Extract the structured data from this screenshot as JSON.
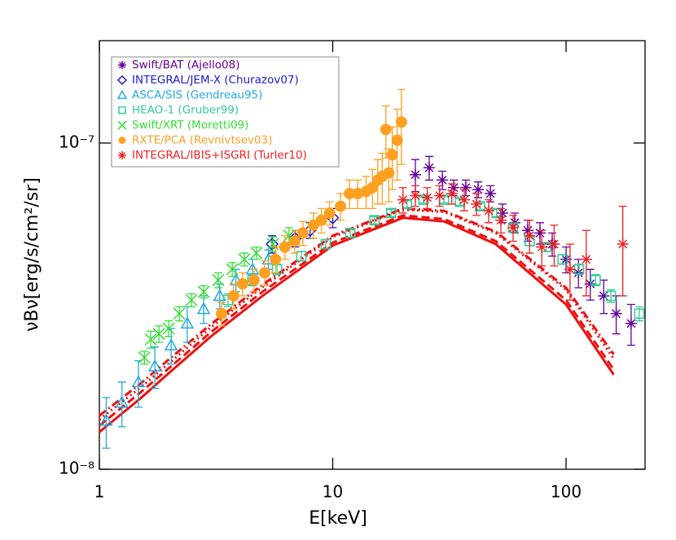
{
  "chart_data": {
    "type": "scatter",
    "xlabel": "E[keV]",
    "ylabel": "νBν[erg/s/cm²/sr]",
    "xscale": "log",
    "yscale": "log",
    "xlim": [
      1,
      218
    ],
    "ylim": [
      1e-08,
      2.06e-07
    ],
    "xticks": [
      1,
      10,
      100
    ],
    "yticks": [
      {
        "value": 1e-08,
        "label": "10⁻⁸"
      },
      {
        "value": 1e-07,
        "label": "10⁻⁷"
      }
    ],
    "legend": "upper left",
    "curves": [
      {
        "color": "#ee1111",
        "style": "solid",
        "x": [
          1,
          1.5,
          2,
          3,
          5,
          10,
          20,
          30,
          50,
          100,
          160
        ],
        "values": [
          1.3e-08,
          1.65e-08,
          1.98e-08,
          2.55e-08,
          3.4e-08,
          4.85e-08,
          5.9e-08,
          5.75e-08,
          4.9e-08,
          3.2e-08,
          1.95e-08
        ]
      },
      {
        "color": "#ee1111",
        "style": "dashed",
        "x": [
          1,
          1.5,
          2,
          3,
          5,
          10,
          20,
          30,
          50,
          100,
          160
        ],
        "values": [
          1.36e-08,
          1.72e-08,
          2.05e-08,
          2.63e-08,
          3.5e-08,
          4.95e-08,
          6e-08,
          5.85e-08,
          5e-08,
          3.3e-08,
          2.02e-08
        ]
      },
      {
        "color": "#ee1111",
        "style": "dotted",
        "x": [
          1,
          1.5,
          2,
          3,
          5,
          10,
          20,
          30,
          50,
          100,
          160
        ],
        "values": [
          1.42e-08,
          1.78e-08,
          2.12e-08,
          2.72e-08,
          3.62e-08,
          5.15e-08,
          6.25e-08,
          6.15e-08,
          5.3e-08,
          3.55e-08,
          2.18e-08
        ]
      },
      {
        "color": "#ee1111",
        "style": "dashdot",
        "x": [
          1,
          1.5,
          2,
          3,
          5,
          10,
          20,
          30,
          50,
          100,
          160
        ],
        "values": [
          1.46e-08,
          1.83e-08,
          2.18e-08,
          2.78e-08,
          3.68e-08,
          5.2e-08,
          6.3e-08,
          6.2e-08,
          5.35e-08,
          3.6e-08,
          2.25e-08
        ]
      }
    ],
    "series": [
      {
        "name": "Swift/BAT (Ajello08)",
        "color": "#660099",
        "marker": "asterisk",
        "x": [
          22.6,
          25.9,
          29.5,
          33,
          37.2,
          42,
          47.4,
          53.4,
          60.3,
          68.5,
          77.3,
          87.2,
          100,
          113,
          127,
          145,
          164,
          190
        ],
        "values": [
          8e-08,
          8.4e-08,
          7.7e-08,
          7.3e-08,
          7.3e-08,
          7.2e-08,
          7e-08,
          6.1e-08,
          5.7e-08,
          5.4e-08,
          5.3e-08,
          4.9e-08,
          4.4e-08,
          4e-08,
          3.7e-08,
          3.4e-08,
          3e-08,
          2.8e-08
        ],
        "errors": [
          9e-09,
          7e-09,
          5e-09,
          4e-09,
          4e-09,
          4e-09,
          4e-09,
          4e-09,
          4e-09,
          4e-09,
          4e-09,
          4e-09,
          4e-09,
          4e-09,
          4e-09,
          4e-09,
          4e-09,
          4e-09
        ]
      },
      {
        "name": "INTEGRAL/JEM-X (Churazov07)",
        "color": "#1a1acc",
        "marker": "diamond",
        "x": [
          5.5,
          6.9,
          8.0,
          10
        ],
        "values": [
          4.9e-08,
          5.1e-08,
          5.4e-08,
          5.9e-08
        ],
        "errors": [
          3e-09,
          3e-09,
          3e-09,
          4e-09
        ]
      },
      {
        "name": "ASCA/SIS (Gendreau95)",
        "color": "#22aadd",
        "marker": "triangle",
        "x": [
          1.07,
          1.25,
          1.47,
          1.73,
          2.03,
          2.38,
          2.8,
          3.28,
          3.85,
          4.53,
          5.3
        ],
        "values": [
          1.41e-08,
          1.6e-08,
          1.85e-08,
          2.07e-08,
          2.4e-08,
          2.8e-08,
          3.1e-08,
          3.4e-08,
          3.8e-08,
          4.1e-08,
          4.4e-08
        ],
        "errors": [
          2.5e-09,
          2.5e-09,
          3e-09,
          3e-09,
          3e-09,
          3.5e-09,
          3e-09,
          3e-09,
          3e-09,
          3e-09,
          3e-09
        ]
      },
      {
        "name": "HEAO-1 (Gruber99)",
        "color": "#33cc99",
        "marker": "square",
        "x": [
          3.56,
          4.53,
          5.77,
          7.34,
          9.34,
          11.9,
          15.1,
          17.8,
          20.8,
          24.5,
          30.0,
          35.1,
          42.8,
          50.4,
          59.3,
          69.8,
          82.1,
          96.7,
          113.7,
          133.8,
          155.6,
          206
        ],
        "values": [
          3.3e-08,
          3.8e-08,
          4.1e-08,
          4.5e-08,
          4.9e-08,
          5.3e-08,
          5.8e-08,
          6.1e-08,
          6.5e-08,
          6.7e-08,
          6.7e-08,
          6.6e-08,
          6.4e-08,
          6.1e-08,
          5.5e-08,
          5e-08,
          4.8e-08,
          4.4e-08,
          4.1e-08,
          3.8e-08,
          3.4e-08,
          3e-08
        ],
        "errors": [
          1.5e-09,
          1.5e-09,
          1.5e-09,
          1.5e-09,
          1.5e-09,
          1.5e-09,
          1.5e-09,
          1.5e-09,
          1.5e-09,
          1.5e-09,
          1.5e-09,
          1.5e-09,
          1.5e-09,
          1.5e-09,
          1.5e-09,
          1.5e-09,
          1.5e-09,
          1.5e-09,
          1.5e-09,
          1.5e-09,
          1.5e-09,
          1.5e-09
        ]
      },
      {
        "name": "Swift/XRT (Moretti09)",
        "color": "#33dd33",
        "marker": "x",
        "x": [
          1.56,
          1.66,
          1.8,
          1.98,
          2.2,
          2.48,
          2.8,
          3.23,
          3.71,
          4.18,
          4.71,
          5.54,
          6.5
        ],
        "values": [
          2.2e-08,
          2.5e-08,
          2.6e-08,
          2.7e-08,
          3e-08,
          3.3e-08,
          3.5e-08,
          3.8e-08,
          4.1e-08,
          4.4e-08,
          4.6e-08,
          4.9e-08,
          5.2e-08
        ],
        "errors": [
          1e-09,
          1.5e-09,
          1.5e-09,
          1.5e-09,
          1.5e-09,
          1.5e-09,
          1.5e-09,
          2e-09,
          2e-09,
          2e-09,
          2e-09,
          2.5e-09,
          3e-09
        ]
      },
      {
        "name": "RXTE/PCA (Revnivtsev03)",
        "color": "#ffa020",
        "marker": "circle",
        "x": [
          3.34,
          3.76,
          4.11,
          4.6,
          5.11,
          5.68,
          6.24,
          6.87,
          7.45,
          8.27,
          8.95,
          9.7,
          10.8,
          11.8,
          12.8,
          13.9,
          14.8,
          15.6,
          16.3,
          16.9,
          17.4,
          18.0,
          18.9,
          19.7
        ],
        "values": [
          3e-08,
          3.4e-08,
          3.7e-08,
          3.8e-08,
          4e-08,
          4.4e-08,
          4.8e-08,
          5e-08,
          5.3e-08,
          5.6e-08,
          5.8e-08,
          6.1e-08,
          6.4e-08,
          7e-08,
          7e-08,
          7.1e-08,
          7.3e-08,
          7.7e-08,
          7.9e-08,
          1.1e-07,
          8.1e-08,
          9.2e-08,
          1.02e-07,
          1.16e-07
        ],
        "errors": [
          2.5e-09,
          3e-09,
          3e-09,
          3e-09,
          3.5e-09,
          4e-09,
          4e-09,
          4e-09,
          4.5e-09,
          5e-09,
          5e-09,
          5e-09,
          6e-09,
          7e-09,
          7e-09,
          8e-09,
          1e-08,
          1.2e-08,
          1.4e-08,
          2e-08,
          1.5e-08,
          2e-08,
          2.5e-08,
          3e-08
        ]
      },
      {
        "name": "INTEGRAL/IBIS+ISGRI (Turler10)",
        "color": "#ee2222",
        "marker": "asterisk",
        "x": [
          20,
          22.6,
          25.4,
          28.7,
          32.4,
          36.6,
          41.3,
          46.6,
          52.6,
          59.3,
          69.8,
          78.7,
          88.9,
          104,
          122,
          175
        ],
        "values": [
          6.7e-08,
          6.9e-08,
          6.8e-08,
          6.9e-08,
          7e-08,
          6.7e-08,
          6.5e-08,
          6.2e-08,
          5.8e-08,
          5.5e-08,
          5.2e-08,
          4.8e-08,
          4.9e-08,
          4.1e-08,
          4.4e-08,
          4.9e-08
        ],
        "errors": [
          6e-09,
          5e-09,
          5e-09,
          5e-09,
          5e-09,
          5e-09,
          5e-09,
          5e-09,
          5e-09,
          5e-09,
          6e-09,
          6e-09,
          7e-09,
          8e-09,
          1e-08,
          1.5e-08
        ]
      }
    ]
  }
}
